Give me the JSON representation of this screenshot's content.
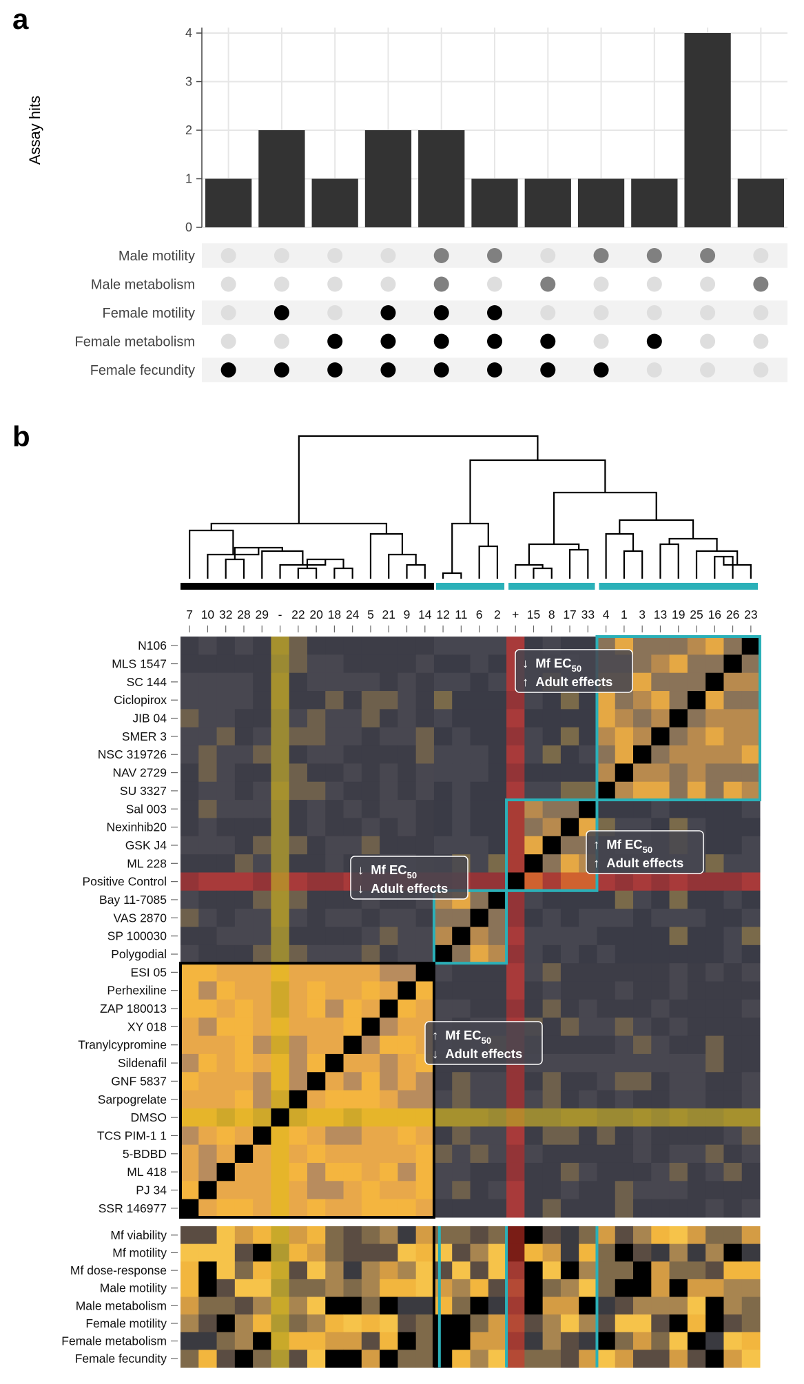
{
  "panel_a_letter": "a",
  "panel_b_letter": "b",
  "annotations": [
    {
      "arrow_mf": "↓",
      "arrow_adult": "↑",
      "mf_text": "Mf EC",
      "mf_sub": "50",
      "adult_text": "Adult effects"
    },
    {
      "arrow_mf": "↑",
      "arrow_adult": "↑",
      "mf_text": "Mf EC",
      "mf_sub": "50",
      "adult_text": "Adult effects"
    },
    {
      "arrow_mf": "↓",
      "arrow_adult": "↓",
      "mf_text": "Mf EC",
      "mf_sub": "50",
      "adult_text": "Adult effects"
    },
    {
      "arrow_mf": "↑",
      "arrow_adult": "↓",
      "mf_text": "Mf EC",
      "mf_sub": "50",
      "adult_text": "Adult effects"
    }
  ],
  "chart_data": [
    {
      "type": "bar",
      "ylabel": "Assay hits",
      "ylim": [
        0,
        4
      ],
      "yticks": [
        0,
        1,
        2,
        3,
        4
      ],
      "grid": true,
      "values": [
        1,
        2,
        1,
        2,
        2,
        1,
        1,
        1,
        1,
        4,
        1
      ],
      "bar_color": "#333333",
      "matrix_rows": [
        "Male motility",
        "Male metabolism",
        "Female motility",
        "Female metabolism",
        "Female fecundity"
      ],
      "matrix_row_colors": [
        "#808080",
        "#808080",
        "#000000",
        "#000000",
        "#000000"
      ],
      "matrix": [
        [
          0,
          0,
          0,
          0,
          1,
          1,
          0,
          1,
          1,
          1,
          0
        ],
        [
          0,
          0,
          0,
          0,
          1,
          0,
          1,
          0,
          0,
          0,
          1
        ],
        [
          0,
          1,
          0,
          1,
          1,
          1,
          0,
          0,
          0,
          0,
          0
        ],
        [
          0,
          0,
          1,
          1,
          1,
          1,
          1,
          0,
          1,
          0,
          0
        ],
        [
          1,
          1,
          1,
          1,
          1,
          1,
          1,
          1,
          0,
          0,
          0
        ]
      ]
    },
    {
      "type": "heatmap",
      "colorscale": [
        "#3d3d47",
        "#6b5a4a",
        "#b8884a",
        "#f2b33c",
        "#000000"
      ],
      "column_labels": [
        "7",
        "10",
        "32",
        "28",
        "29",
        "-",
        "22",
        "20",
        "18",
        "24",
        "5",
        "21",
        "9",
        "14",
        "12",
        "11",
        "6",
        "2",
        "+",
        "15",
        "8",
        "17",
        "33",
        "4",
        "1",
        "3",
        "13",
        "19",
        "25",
        "16",
        "26",
        "23"
      ],
      "row_labels": [
        "N106",
        "MLS 1547",
        "SC 144",
        "Ciclopirox",
        "JIB 04",
        "SMER 3",
        "NSC 319726",
        "NAV 2729",
        "SU 3327",
        "Sal 003",
        "Nexinhib20",
        "GSK J4",
        "ML 228",
        "Positive Control",
        "Bay 11-7085",
        "VAS 2870",
        "SP 100030",
        "Polygodial",
        "ESI 05",
        "Perhexiline",
        "ZAP 180013",
        "XY 018",
        "Tranylcypromine",
        "Sildenafil",
        "GNF 5837",
        "Sarpogrelate",
        "DMSO",
        "TCS PIM-1 1",
        "5-BDBD",
        "ML 418",
        "PJ 34",
        "SSR 146977"
      ],
      "cluster_bar_colors": [
        "#000000",
        "#2bb0b8",
        "#2bb0b8",
        "#2bb0b8"
      ],
      "bottom_row_labels": [
        "Mf viability",
        "Mf motility",
        "Mf dose-response ",
        "Male motility",
        "Male metabolism",
        "Female motility",
        "Female metabolism",
        "Female fecundity"
      ]
    }
  ]
}
